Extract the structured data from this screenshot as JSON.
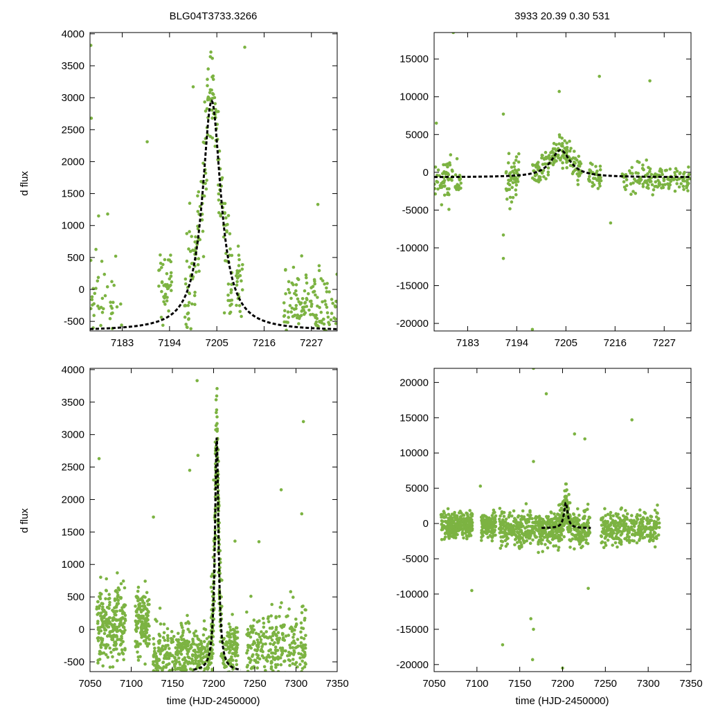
{
  "figure": {
    "title_left": "BLG04T3733.3266",
    "title_right": "3933  20.39  0.30  531",
    "ylabel_top": "d flux",
    "ylabel_bottom": "d flux",
    "xlabel_bottom_left": "time (HJD-2450000)",
    "xlabel_bottom_right": "time (HJD-2450000)",
    "colors": {
      "points": "#7cb342",
      "model": "#000000",
      "axis": "#000000"
    }
  },
  "chart_data": [
    {
      "type": "scatter",
      "panel": "top-left",
      "xlabel": "",
      "ylabel": "d flux",
      "xlim": [
        7175.5,
        7233
      ],
      "ylim": [
        -650,
        4020
      ],
      "xticks": [
        7183,
        7194,
        7205,
        7216,
        7227
      ],
      "yticks": [
        -500,
        0,
        500,
        1000,
        1500,
        2000,
        2500,
        3000,
        3500,
        4000
      ],
      "grid": false,
      "model": {
        "name": "",
        "style": "dashed",
        "t0": 7203.8,
        "tE": 2.6,
        "peak": 2950,
        "baseline": -650,
        "xrange": [
          7175.5,
          7233
        ]
      },
      "segments": [
        {
          "x": [
            7175.5,
            7183
          ],
          "y_mean": -200,
          "y_sd": 420,
          "n": 50
        },
        {
          "x": [
            7191.5,
            7194.5
          ],
          "y_mean": 0,
          "y_sd": 320,
          "n": 45
        },
        {
          "x": [
            7197.5,
            7208.5
          ],
          "y_mean": "model",
          "y_sd": 380,
          "n": 180
        },
        {
          "x": [
            7209.5,
            7211
          ],
          "y_mean": 150,
          "y_sd": 250,
          "n": 25
        },
        {
          "x": [
            7220.5,
            7233
          ],
          "y_mean": -250,
          "y_sd": 260,
          "n": 140
        }
      ],
      "outliers": [
        [
          7175.7,
          3820
        ],
        [
          7175.8,
          2680
        ],
        [
          7188.8,
          2310
        ],
        [
          7199.5,
          3170
        ],
        [
          7211.5,
          3790
        ],
        [
          7228.5,
          1330
        ],
        [
          7177.5,
          1150
        ],
        [
          7179.6,
          1180
        ]
      ]
    },
    {
      "type": "scatter",
      "panel": "top-right",
      "xlabel": "",
      "ylabel": "",
      "xlim": [
        7175.5,
        7233
      ],
      "ylim": [
        -21000,
        18500
      ],
      "xticks": [
        7183,
        7194,
        7205,
        7216,
        7227
      ],
      "yticks": [
        -20000,
        -15000,
        -10000,
        -5000,
        0,
        5000,
        10000,
        15000
      ],
      "grid": false,
      "model": {
        "name": "",
        "style": "dashed",
        "t0": 7203.8,
        "tE": 2.6,
        "peak": 2950,
        "baseline": -650,
        "xrange": [
          7175.5,
          7233
        ]
      },
      "segments": [
        {
          "x": [
            7175.5,
            7181.5
          ],
          "y_mean": -1000,
          "y_sd": 1300,
          "n": 70
        },
        {
          "x": [
            7191.5,
            7194.5
          ],
          "y_mean": -700,
          "y_sd": 1500,
          "n": 50
        },
        {
          "x": [
            7197.5,
            7208.5
          ],
          "y_mean": "model",
          "y_sd": 1100,
          "n": 160
        },
        {
          "x": [
            7210,
            7213
          ],
          "y_mean": -500,
          "y_sd": 1000,
          "n": 40
        },
        {
          "x": [
            7217.5,
            7233
          ],
          "y_mean": -800,
          "y_sd": 900,
          "n": 150
        }
      ],
      "outliers": [
        [
          7179.8,
          18500
        ],
        [
          7212.5,
          12700
        ],
        [
          7223.8,
          12100
        ],
        [
          7191,
          7700
        ],
        [
          7203.5,
          10700
        ],
        [
          7191,
          -8300
        ],
        [
          7191,
          -11400
        ],
        [
          7215,
          -6700
        ],
        [
          7197.5,
          -20800
        ],
        [
          7176,
          6500
        ]
      ]
    },
    {
      "type": "scatter",
      "panel": "bottom-left",
      "xlabel": "time (HJD-2450000)",
      "ylabel": "d flux",
      "xlim": [
        7050,
        7350
      ],
      "ylim": [
        -650,
        4020
      ],
      "xticks": [
        7050,
        7100,
        7150,
        7200,
        7250,
        7300,
        7350
      ],
      "yticks": [
        -500,
        0,
        500,
        1000,
        1500,
        2000,
        2500,
        3000,
        3500,
        4000
      ],
      "grid": false,
      "model": {
        "name": "",
        "style": "dashed",
        "t0": 7203.8,
        "tE": 2.6,
        "peak": 2950,
        "baseline": -650,
        "xrange": [
          7175.5,
          7233
        ]
      },
      "segments": [
        {
          "x": [
            7058,
            7093
          ],
          "y_mean": 80,
          "y_sd": 300,
          "n": 260
        },
        {
          "x": [
            7105,
            7122
          ],
          "y_mean": 150,
          "y_sd": 250,
          "n": 150
        },
        {
          "x": [
            7126,
            7197
          ],
          "y_mean": -450,
          "y_sd": 260,
          "n": 420
        },
        {
          "x": [
            7197,
            7210
          ],
          "y_mean": "model",
          "y_sd": 420,
          "n": 200
        },
        {
          "x": [
            7211,
            7230
          ],
          "y_mean": -300,
          "y_sd": 260,
          "n": 120
        },
        {
          "x": [
            7240,
            7312
          ],
          "y_mean": -250,
          "y_sd": 300,
          "n": 300
        }
      ],
      "outliers": [
        [
          7061,
          2630
        ],
        [
          7180,
          3830
        ],
        [
          7181,
          2680
        ],
        [
          7171,
          2450
        ],
        [
          7309,
          3200
        ],
        [
          7307,
          1780
        ],
        [
          7282,
          2150
        ],
        [
          7127,
          1730
        ],
        [
          7255,
          1350
        ],
        [
          7226,
          1360
        ],
        [
          7200,
          2300
        ]
      ]
    },
    {
      "type": "scatter",
      "panel": "bottom-right",
      "xlabel": "time (HJD-2450000)",
      "ylabel": "",
      "xlim": [
        7050,
        7350
      ],
      "ylim": [
        -21000,
        22000
      ],
      "xticks": [
        7050,
        7100,
        7150,
        7200,
        7250,
        7300,
        7350
      ],
      "yticks": [
        -20000,
        -15000,
        -10000,
        -5000,
        0,
        5000,
        10000,
        15000,
        20000
      ],
      "grid": false,
      "model": {
        "name": "",
        "style": "dashed",
        "t0": 7203.8,
        "tE": 2.6,
        "peak": 2950,
        "baseline": -650,
        "xrange": [
          7175.5,
          7233
        ]
      },
      "segments": [
        {
          "x": [
            7058,
            7095
          ],
          "y_mean": -300,
          "y_sd": 900,
          "n": 260
        },
        {
          "x": [
            7105,
            7122
          ],
          "y_mean": -300,
          "y_sd": 900,
          "n": 130
        },
        {
          "x": [
            7126,
            7197
          ],
          "y_mean": -800,
          "y_sd": 1100,
          "n": 420
        },
        {
          "x": [
            7197,
            7210
          ],
          "y_mean": "model",
          "y_sd": 1300,
          "n": 150
        },
        {
          "x": [
            7211,
            7232
          ],
          "y_mean": -900,
          "y_sd": 1300,
          "n": 120
        },
        {
          "x": [
            7245,
            7313
          ],
          "y_mean": -700,
          "y_sd": 1200,
          "n": 320
        }
      ],
      "outliers": [
        [
          7166,
          22000
        ],
        [
          7181,
          18400
        ],
        [
          7281,
          14700
        ],
        [
          7214,
          12700
        ],
        [
          7226,
          12000
        ],
        [
          7166,
          8800
        ],
        [
          7104,
          5300
        ],
        [
          7130,
          -17200
        ],
        [
          7165,
          -19300
        ],
        [
          7200,
          -20500
        ],
        [
          7163,
          -13500
        ],
        [
          7166,
          -15000
        ],
        [
          7094,
          -9500
        ],
        [
          7230,
          -9200
        ]
      ]
    }
  ]
}
